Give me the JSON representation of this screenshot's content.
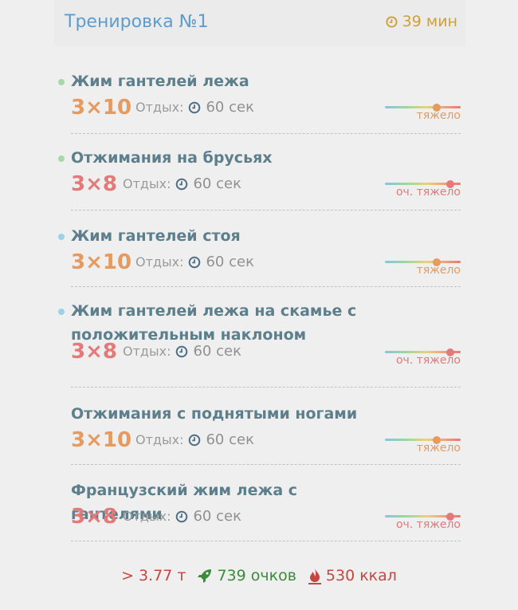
{
  "header": {
    "title": "Тренировка №1",
    "duration": "39 мин"
  },
  "colors": {
    "orange": "#e59a5f",
    "red": "#e37979",
    "dot_green": "#a6d9a8",
    "dot_blue": "#9cd1ea"
  },
  "exercises": [
    {
      "name": "Жим гантелей лежа",
      "sets": "3×10",
      "rest_label": "Отдых:",
      "rest": "60 сек",
      "difficulty": "тяжело",
      "difficulty_level": 0.68,
      "dot": "green"
    },
    {
      "name": "Отжимания на брусьях",
      "sets": "3×8",
      "rest_label": "Отдых:",
      "rest": "60 сек",
      "difficulty": "оч. тяжело",
      "difficulty_level": 0.86,
      "dot": "green"
    },
    {
      "name": "Жим гантелей стоя",
      "sets": "3×10",
      "rest_label": "Отдых:",
      "rest": "60 сек",
      "difficulty": "тяжело",
      "difficulty_level": 0.68,
      "dot": "blue"
    },
    {
      "name": "Жим гантелей лежа на скамье с положительным наклоном",
      "sets": "3×8",
      "rest_label": "Отдых:",
      "rest": "60 сек",
      "difficulty": "оч. тяжело",
      "difficulty_level": 0.86,
      "dot": "blue"
    },
    {
      "name": "Отжимания с поднятыми ногами",
      "sets": "3×10",
      "rest_label": "Отдых:",
      "rest": "60 сек",
      "difficulty": "тяжело",
      "difficulty_level": 0.68,
      "dot": "none"
    },
    {
      "name": "Французский жим лежа с гантелями",
      "sets": "3×8",
      "rest_label": "Отдых:",
      "rest": "60 сек",
      "difficulty": "оч. тяжело",
      "difficulty_level": 0.86,
      "dot": "none"
    }
  ],
  "footer": {
    "weight": "> 3.77 т",
    "points": "739 очков",
    "calories": "530 ккал"
  }
}
